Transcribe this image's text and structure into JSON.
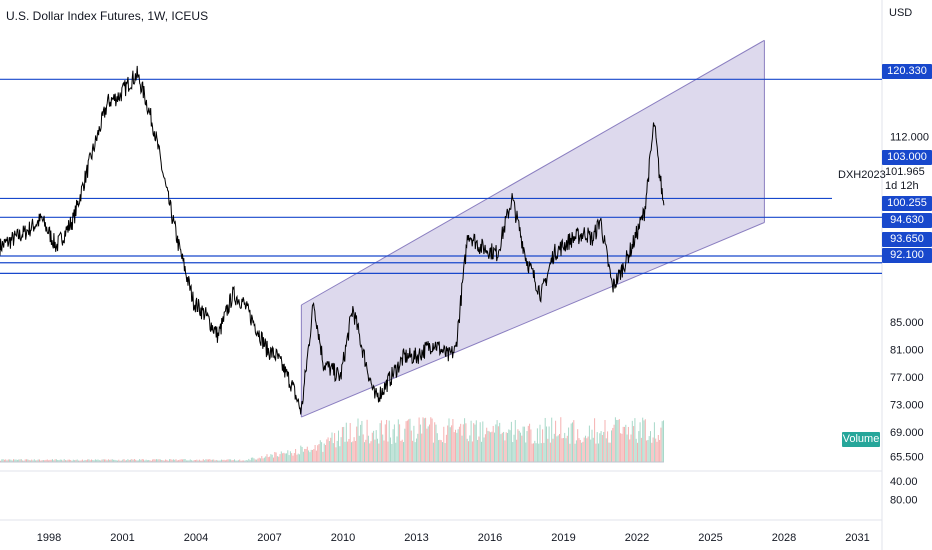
{
  "header": {
    "title": "U.S. Dollar Index Futures, 1W, ICEUS"
  },
  "price_axis": {
    "currency": "USD",
    "ticks": [
      "112.000",
      "85.000",
      "81.000",
      "77.000",
      "73.000",
      "69.000",
      "65.500"
    ],
    "badges": [
      "120.330",
      "103.000",
      "100.255",
      "94.630",
      "93.650",
      "92.100"
    ],
    "last_price": "101.965",
    "countdown": "1d 12h",
    "contract": "DXH2023"
  },
  "volume_axis": {
    "ticks": [
      "80.00",
      "40.00"
    ],
    "label": "Volume"
  },
  "time_axis": {
    "labels": [
      "1998",
      "2001",
      "2004",
      "2007",
      "2010",
      "2013",
      "2016",
      "2019",
      "2022",
      "2025",
      "2028",
      "2031"
    ]
  },
  "colors": {
    "line": "#1848cc",
    "price": "#000000",
    "channel_fill": "#d4cfe8",
    "channel_edge": "#8a7ec0",
    "vol_up": "#a8d8c9",
    "vol_down": "#f5b0b0",
    "axis_text": "#131722",
    "volume_badge": "#26a69a"
  },
  "chart_data": {
    "type": "line",
    "title": "U.S. Dollar Index Futures, 1W, ICEUS",
    "ylabel": "USD",
    "x": [
      1996.0,
      1997.0,
      1997.7,
      1998.3,
      1999.0,
      1999.8,
      2000.4,
      2000.9,
      2001.3,
      2001.6,
      2001.9,
      2002.3,
      2002.8,
      2003.3,
      2003.9,
      2004.4,
      2004.9,
      2005.5,
      2005.9,
      2006.5,
      2006.9,
      2007.3,
      2007.9,
      2008.3,
      2008.8,
      2009.2,
      2009.9,
      2010.4,
      2010.8,
      2011.3,
      2011.6,
      2012.5,
      2013.0,
      2013.7,
      2014.3,
      2014.6,
      2015.1,
      2015.6,
      2016.3,
      2016.9,
      2017.5,
      2018.1,
      2018.6,
      2019.3,
      2019.9,
      2020.2,
      2020.5,
      2021.0,
      2021.3,
      2021.8,
      2022.3,
      2022.7,
      2022.9,
      2023.1
    ],
    "y": [
      96,
      98,
      100,
      96,
      100,
      110,
      117,
      118,
      120,
      121,
      118,
      113,
      104,
      96,
      88,
      86,
      83,
      89,
      88,
      84,
      81,
      80,
      76,
      72,
      88,
      79,
      77,
      87,
      81,
      74,
      75,
      80,
      80,
      82,
      80,
      81,
      98,
      96,
      95,
      103,
      94,
      89,
      95,
      97,
      98,
      97,
      100,
      90,
      92,
      96,
      101,
      114,
      107,
      102
    ],
    "volume_ylim": [
      0,
      100
    ],
    "volume_ticks": [
      40,
      80
    ],
    "xlim": [
      1996.0,
      2032.0
    ],
    "ylim": [
      63.5,
      127.5
    ],
    "hlines": [
      120.33,
      103.0,
      100.255,
      94.63,
      93.65,
      92.1
    ],
    "channel": {
      "upper": [
        [
          2008.3,
          87.5
        ],
        [
          2027.2,
          126.0
        ]
      ],
      "lower": [
        [
          2008.3,
          71.2
        ],
        [
          2027.2,
          99.5
        ]
      ]
    },
    "last_price": 101.965,
    "xticks": [
      1998,
      2001,
      2004,
      2007,
      2010,
      2013,
      2016,
      2019,
      2022,
      2025,
      2028,
      2031
    ],
    "yticks": [
      112,
      85,
      81,
      77,
      73,
      69,
      65.5
    ],
    "grid": true
  }
}
